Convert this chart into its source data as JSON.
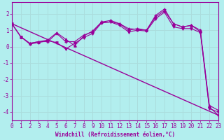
{
  "xlabel": "Windchill (Refroidissement éolien,°C)",
  "bg_color": "#b2eeee",
  "grid_color": "#aadddd",
  "line_color": "#990099",
  "xlim": [
    0,
    23
  ],
  "ylim": [
    -4.5,
    2.7
  ],
  "yticks": [
    2,
    1,
    0,
    -1,
    -2,
    -3,
    -4
  ],
  "xticks": [
    0,
    1,
    2,
    3,
    4,
    5,
    6,
    7,
    8,
    9,
    10,
    11,
    12,
    13,
    14,
    15,
    16,
    17,
    18,
    19,
    20,
    21,
    22,
    23
  ],
  "lines": [
    {
      "x": [
        0,
        23
      ],
      "y": [
        1.4,
        -4.2
      ],
      "marker": null,
      "linewidth": 1.0
    },
    {
      "x": [
        0,
        1,
        2,
        3,
        4,
        5,
        6,
        7,
        8,
        9,
        10,
        11,
        12,
        13,
        14,
        15,
        16,
        17,
        18,
        19,
        20,
        21,
        22,
        23
      ],
      "y": [
        1.4,
        0.6,
        0.2,
        0.3,
        0.3,
        0.8,
        0.3,
        0.3,
        0.7,
        0.9,
        1.5,
        1.5,
        1.4,
        1.0,
        1.1,
        1.0,
        1.9,
        2.3,
        1.4,
        1.2,
        1.3,
        0.9,
        -3.7,
        -4.2
      ],
      "marker": "+",
      "linewidth": 0.8
    },
    {
      "x": [
        0,
        1,
        2,
        3,
        4,
        5,
        6,
        7,
        8,
        9,
        10,
        11,
        12,
        13,
        14,
        15,
        16,
        17,
        18,
        19,
        20,
        21,
        22,
        23
      ],
      "y": [
        1.4,
        0.6,
        0.15,
        0.25,
        0.35,
        0.25,
        -0.15,
        0.2,
        0.55,
        0.8,
        1.45,
        1.5,
        1.3,
        0.9,
        1.0,
        0.95,
        1.7,
        2.1,
        1.2,
        1.1,
        1.1,
        0.85,
        -3.8,
        -4.0
      ],
      "marker": "v",
      "linewidth": 0.8
    },
    {
      "x": [
        0,
        1,
        2,
        3,
        4,
        5,
        6,
        7,
        8,
        9,
        10,
        11,
        12,
        13,
        14,
        15,
        16,
        17,
        18,
        19,
        20,
        21,
        22,
        23
      ],
      "y": [
        1.4,
        0.6,
        0.2,
        0.3,
        0.4,
        0.85,
        0.45,
        0.05,
        0.65,
        0.95,
        1.5,
        1.6,
        1.4,
        1.1,
        1.05,
        1.0,
        1.8,
        2.2,
        1.4,
        1.2,
        1.3,
        1.0,
        -3.6,
        -3.9
      ],
      "marker": "^",
      "linewidth": 0.8
    }
  ]
}
